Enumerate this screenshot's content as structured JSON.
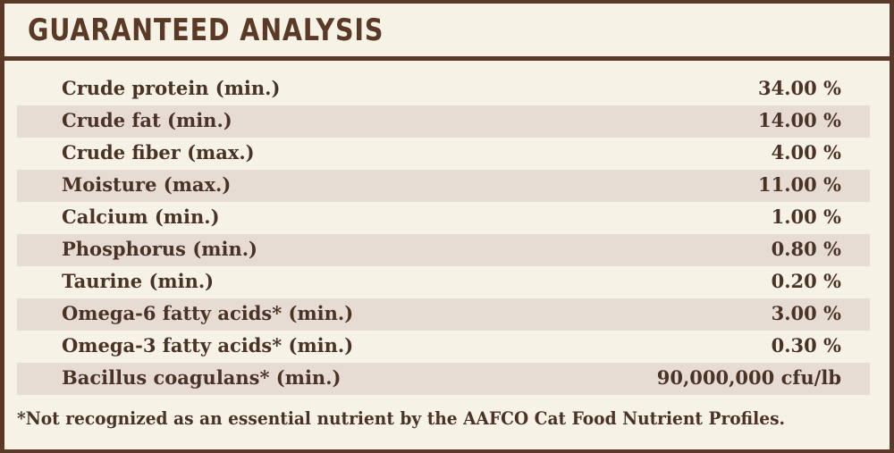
{
  "title": "GUARANTEED ANALYSIS",
  "rows": [
    {
      "label": "Crude protein (min.)",
      "value": "34.00 %"
    },
    {
      "label": "Crude fat (min.)",
      "value": "14.00 %"
    },
    {
      "label": "Crude fiber (max.)",
      "value": "4.00 %"
    },
    {
      "label": "Moisture (max.)",
      "value": "11.00 %"
    },
    {
      "label": "Calcium (min.)",
      "value": "1.00 %"
    },
    {
      "label": "Phosphorus (min.)",
      "value": "0.80 %"
    },
    {
      "label": "Taurine (min.)",
      "value": "0.20 %"
    },
    {
      "label": "Omega-6 fatty acids* (min.)",
      "value": "3.00 %"
    },
    {
      "label": "Omega-3 fatty acids* (min.)",
      "value": "0.30 %"
    },
    {
      "label": "Bacillus coagulans* (min.)",
      "value": "90,000,000 cfu/lb"
    }
  ],
  "footnote": "*Not recognized as an essential nutrient by the AAFCO Cat Food Nutrient Profiles.",
  "colors": {
    "border": "#5a3a26",
    "background": "#f7f2e6",
    "row_shade": "#e7dcd3",
    "text": "#4a3326"
  }
}
